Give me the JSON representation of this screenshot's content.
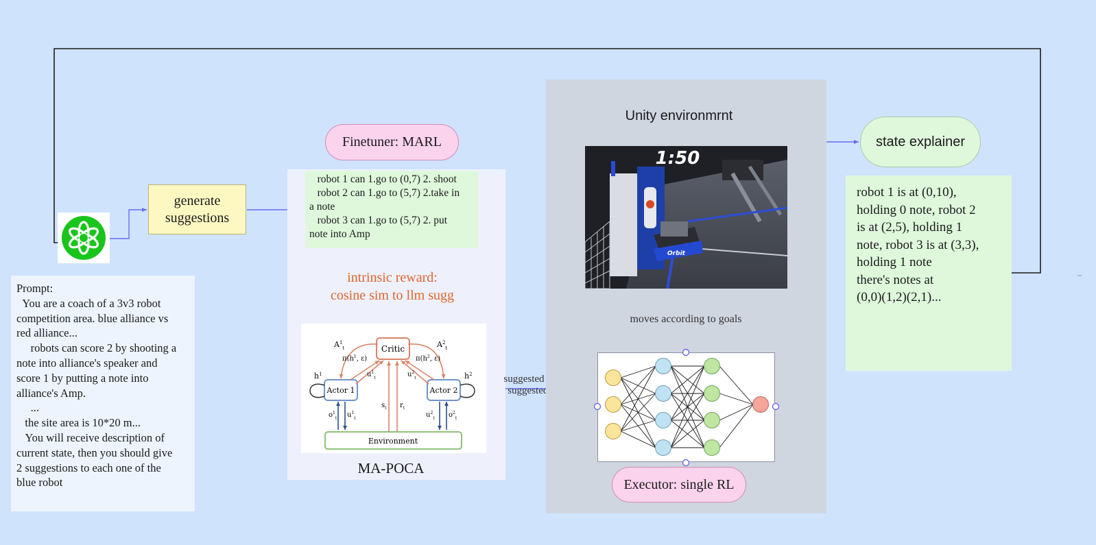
{
  "prompt": {
    "lines": [
      "Prompt:",
      "  You are a coach of a 3v3 robot",
      "competition area. blue alliance vs",
      "red alliance...",
      "     robots can score 2 by shooting a",
      "note into alliance's speaker and",
      "score 1 by putting a note into",
      "alliance's Amp.",
      "     ...",
      "   the site area is 10*20 m...",
      "   You will receive description of",
      "current state, then you should give",
      "2 suggestions to each one of the",
      "blue robot"
    ]
  },
  "generate": {
    "label_line1": "generate",
    "label_line2": "suggestions"
  },
  "finetuner": {
    "label": "Finetuner: MARL"
  },
  "suggestions": {
    "lines": [
      "   robot 1 can 1.go to (0,7) 2. shoot",
      "   robot 2 can 1.go to (5,7) 2.take in",
      "a note",
      "   robot 3 can 1.go to (5,7) 2. put",
      "note into Amp"
    ]
  },
  "reward": {
    "line1": "intrinsic reward:",
    "line2": "cosine sim to llm sugg"
  },
  "mapoca": {
    "caption": "MA-POCA",
    "critic": "Critic",
    "actor1": "Actor 1",
    "actor2": "Actor 2",
    "environment": "Environment"
  },
  "unity": {
    "title": "Unity environmrnt",
    "game_timer": "1:50",
    "robot_tag": "Orbit"
  },
  "moves_label": "moves according to goals",
  "edge_labels": {
    "line1": "suggested position",
    "line2": "suggested action"
  },
  "executor": {
    "label": "Executor: single RL"
  },
  "state_explainer": {
    "label": "state explainer"
  },
  "state": {
    "lines": [
      "robot 1 is at (0,10),",
      "holding 0 note, robot 2",
      "is at (2,5), holding 1",
      "note, robot 3 is at (3,3),",
      "holding 1 note",
      "there's notes at",
      "(0,0)(1,2)(2,1)..."
    ]
  },
  "colors": {
    "background": "#cfe3fd",
    "arrow": "#6a6cf0",
    "loop_line": "#1a1a1a",
    "reward_text": "#e0652c",
    "gpt_green": "#19c51c"
  },
  "icons": {
    "logo": "openai-logo-icon"
  }
}
